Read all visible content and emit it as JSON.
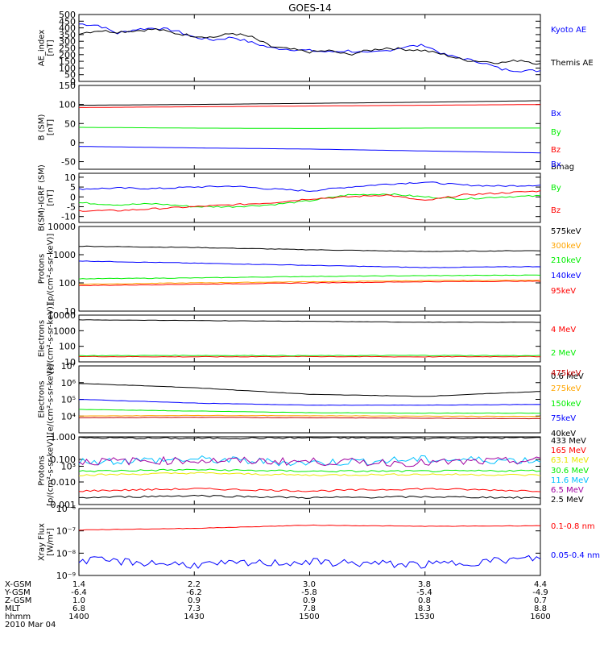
{
  "title": "GOES-14",
  "colors": {
    "black": "#000000",
    "blue": "#0000ff",
    "red": "#ff0000",
    "green": "#00ee00",
    "orange": "#ffa500",
    "yellow": "#e8e800",
    "cyan": "#00c0ff",
    "purple": "#a000a0",
    "darkred": "#c00000"
  },
  "chart_data": [
    {
      "type": "line",
      "ylabel": "AE_index\n[nT]",
      "ylim": [
        0,
        500
      ],
      "yticks": [
        "0",
        "50",
        "100",
        "150",
        "200",
        "250",
        "300",
        "350",
        "400",
        "450",
        "500"
      ],
      "series": [
        {
          "name": "Kyoto AE",
          "color": "blue",
          "x": [
            0,
            5,
            10,
            15,
            20,
            25,
            30,
            35,
            40,
            45,
            50,
            55,
            60,
            65,
            70,
            75,
            80,
            85,
            90,
            95,
            100,
            105,
            110,
            115,
            120
          ],
          "y": [
            430,
            420,
            360,
            390,
            400,
            380,
            330,
            310,
            330,
            290,
            250,
            240,
            230,
            220,
            230,
            210,
            230,
            260,
            270,
            200,
            170,
            140,
            90,
            80,
            80
          ]
        },
        {
          "name": "Themis AE",
          "color": "black",
          "x": [
            0,
            5,
            10,
            15,
            20,
            25,
            30,
            35,
            40,
            45,
            50,
            55,
            60,
            65,
            70,
            75,
            80,
            85,
            90,
            95,
            100,
            105,
            110,
            115,
            120
          ],
          "y": [
            360,
            380,
            370,
            380,
            390,
            360,
            340,
            330,
            360,
            330,
            260,
            240,
            220,
            230,
            200,
            230,
            250,
            240,
            230,
            200,
            160,
            150,
            140,
            160,
            130
          ]
        }
      ]
    },
    {
      "type": "line",
      "ylabel": "B (SM)\n[nT]",
      "ylim": [
        -70,
        150
      ],
      "yticks": [
        "-50",
        "0",
        "50",
        "100",
        "150"
      ],
      "series": [
        {
          "name": "Bx",
          "color": "blue",
          "x": [
            0,
            30,
            60,
            90,
            120
          ],
          "y": [
            -10,
            -14,
            -17,
            -22,
            -27
          ]
        },
        {
          "name": "By",
          "color": "green",
          "x": [
            0,
            30,
            60,
            90,
            120
          ],
          "y": [
            40,
            38,
            37,
            38,
            38
          ]
        },
        {
          "name": "Bz",
          "color": "red",
          "x": [
            0,
            30,
            60,
            90,
            120
          ],
          "y": [
            92,
            94,
            96,
            98,
            100
          ]
        },
        {
          "name": "Bmag",
          "color": "black",
          "x": [
            0,
            30,
            60,
            90,
            120
          ],
          "y": [
            98,
            100,
            103,
            106,
            110
          ]
        }
      ]
    },
    {
      "type": "line",
      "ylabel": "B(SM)-IGRF (SM)\n[nT]",
      "ylim": [
        -13,
        12
      ],
      "yticks": [
        "-10",
        "-5",
        "0",
        "5",
        "10"
      ],
      "series": [
        {
          "name": "Bx",
          "color": "blue",
          "x": [
            0,
            10,
            20,
            30,
            40,
            50,
            60,
            70,
            80,
            90,
            100,
            110,
            120
          ],
          "y": [
            4,
            4.5,
            4.2,
            5,
            5.5,
            4,
            3,
            5,
            6.5,
            7.5,
            6,
            5.5,
            6
          ]
        },
        {
          "name": "By",
          "color": "green",
          "x": [
            0,
            10,
            20,
            30,
            40,
            50,
            60,
            70,
            80,
            90,
            100,
            110,
            120
          ],
          "y": [
            -3,
            -4,
            -3.5,
            -5,
            -5,
            -4,
            -2,
            1,
            1.5,
            0,
            -1,
            0,
            0.5
          ]
        },
        {
          "name": "Bz",
          "color": "red",
          "x": [
            0,
            10,
            20,
            30,
            40,
            50,
            60,
            70,
            80,
            90,
            100,
            110,
            120
          ],
          "y": [
            -7,
            -7,
            -6,
            -5,
            -4,
            -3,
            -1,
            0,
            1,
            -2,
            1,
            2,
            3
          ]
        }
      ]
    },
    {
      "type": "line",
      "log": true,
      "ylabel": "Protons\n[p/(cm²-s-sr-keV)]",
      "ylim": [
        10,
        10000
      ],
      "yticks": [
        "10",
        "100",
        "1000",
        "10000"
      ],
      "series": [
        {
          "name": "575keV",
          "color": "black",
          "x": [
            0,
            30,
            60,
            90,
            120
          ],
          "y": [
            2000,
            1800,
            1500,
            1300,
            1400
          ]
        },
        {
          "name": "300keV",
          "color": "orange",
          "x": [
            0,
            30,
            60,
            90,
            120
          ],
          "y": [
            90,
            100,
            110,
            120,
            125
          ]
        },
        {
          "name": "210keV",
          "color": "green",
          "x": [
            0,
            30,
            60,
            90,
            120
          ],
          "y": [
            140,
            150,
            170,
            180,
            190
          ]
        },
        {
          "name": "140keV",
          "color": "blue",
          "x": [
            0,
            30,
            60,
            90,
            120
          ],
          "y": [
            600,
            500,
            420,
            350,
            380
          ]
        },
        {
          "name": "95keV",
          "color": "red",
          "x": [
            0,
            30,
            60,
            90,
            120
          ],
          "y": [
            80,
            90,
            100,
            110,
            115
          ]
        }
      ]
    },
    {
      "type": "line",
      "log": true,
      "ylabel": "Electrons\n[e/(cm²-s-sr-keV)]",
      "ylim": [
        10,
        10000
      ],
      "yticks": [
        "10",
        "100",
        "1000",
        "10000"
      ],
      "series": [
        {
          "name": "4 MeV",
          "color": "red",
          "x": [
            0,
            30,
            60,
            90,
            120
          ],
          "y": [
            22,
            21,
            22,
            21,
            22
          ]
        },
        {
          "name": "2 MeV",
          "color": "green",
          "x": [
            0,
            30,
            60,
            90,
            120
          ],
          "y": [
            25,
            26,
            25,
            26,
            25
          ]
        },
        {
          "name": "0.6 MeV",
          "color": "black",
          "x": [
            0,
            30,
            60,
            90,
            120
          ],
          "y": [
            5000,
            4500,
            4000,
            3500,
            3500
          ]
        }
      ]
    },
    {
      "type": "line",
      "log": true,
      "ylabel": "Electrons\n[e/(cm²-s-sr-keV)]",
      "ylim": [
        1000,
        10000000
      ],
      "yticks": [
        "10³",
        "10⁴",
        "10⁵",
        "10⁶",
        "10⁷"
      ],
      "series": [
        {
          "name": "475keV",
          "color": "darkred",
          "x": [
            0,
            30,
            60,
            90,
            120
          ],
          "y": [
            8000,
            8500,
            8000,
            7500,
            7000
          ]
        },
        {
          "name": "275keV",
          "color": "orange",
          "x": [
            0,
            30,
            60,
            90,
            120
          ],
          "y": [
            10000,
            11000,
            10500,
            10000,
            9500
          ]
        },
        {
          "name": "150keV",
          "color": "green",
          "x": [
            0,
            30,
            60,
            90,
            120
          ],
          "y": [
            25000,
            20000,
            16000,
            15000,
            15000
          ]
        },
        {
          "name": "75keV",
          "color": "blue",
          "x": [
            0,
            30,
            60,
            90,
            120
          ],
          "y": [
            100000,
            60000,
            45000,
            45000,
            50000
          ]
        },
        {
          "name": "40keV",
          "color": "black",
          "x": [
            0,
            30,
            60,
            90,
            120
          ],
          "y": [
            900000,
            500000,
            200000,
            150000,
            300000
          ]
        }
      ]
    },
    {
      "type": "line",
      "log": true,
      "ylabel": "Protons\n[p/(cm²-s-sr-keV)]",
      "ylim": [
        0.001,
        1
      ],
      "yticks": [
        "0.001",
        "0.010",
        "0.100",
        "1.000"
      ],
      "series": [
        {
          "name": "433 MeV",
          "color": "black",
          "x": [
            0,
            30,
            60,
            90,
            120
          ],
          "y": [
            0.9,
            0.85,
            0.9,
            0.88,
            0.9
          ]
        },
        {
          "name": "165 MeV",
          "color": "red",
          "x": [
            0,
            30,
            60,
            90,
            120
          ],
          "y": [
            0.004,
            0.005,
            0.004,
            0.005,
            0.004
          ]
        },
        {
          "name": "63.1 MeV",
          "color": "yellow",
          "x": [
            0,
            30,
            60,
            90,
            120
          ],
          "y": [
            0.02,
            0.025,
            0.02,
            0.022,
            0.02
          ]
        },
        {
          "name": "30.6 MeV",
          "color": "green",
          "x": [
            0,
            30,
            60,
            90,
            120
          ],
          "y": [
            0.03,
            0.035,
            0.03,
            0.03,
            0.032
          ]
        },
        {
          "name": "11.6 MeV",
          "color": "cyan",
          "x": [
            0,
            30,
            60,
            90,
            120
          ],
          "y": [
            0.08,
            0.1,
            0.07,
            0.1,
            0.09
          ]
        },
        {
          "name": "6.5 MeV",
          "color": "purple",
          "x": [
            0,
            30,
            60,
            90,
            120
          ],
          "y": [
            0.08,
            0.09,
            0.08,
            0.07,
            0.09
          ]
        },
        {
          "name": "2.5 MeV",
          "color": "black",
          "x": [
            0,
            30,
            60,
            90,
            120
          ],
          "y": [
            0.002,
            0.0025,
            0.002,
            0.0022,
            0.002
          ]
        }
      ]
    },
    {
      "type": "line",
      "log": true,
      "ylabel": "Xray Flux\n[W/m²]",
      "ylim": [
        1e-09,
        1e-06
      ],
      "yticks": [
        "10⁻⁹",
        "10⁻⁸",
        "10⁻⁷",
        "10⁻⁶"
      ],
      "series": [
        {
          "name": "0.1-0.8 nm",
          "color": "red",
          "x": [
            0,
            30,
            60,
            90,
            120
          ],
          "y": [
            1.1e-07,
            1.3e-07,
            1.8e-07,
            1.6e-07,
            1.7e-07
          ]
        },
        {
          "name": "0.05-0.4 nm",
          "color": "blue",
          "x": [
            0,
            30,
            60,
            90,
            120
          ],
          "y": [
            5e-09,
            3e-09,
            4e-09,
            3e-09,
            6e-09
          ]
        }
      ]
    }
  ],
  "footer": {
    "rows": [
      {
        "label": "X-GSM",
        "values": [
          "1.4",
          "2.2",
          "3.0",
          "3.8",
          "4.4"
        ]
      },
      {
        "label": "Y-GSM",
        "values": [
          "-6.4",
          "-6.2",
          "-5.8",
          "-5.4",
          "-4.9"
        ]
      },
      {
        "label": "Z-GSM",
        "values": [
          "1.0",
          "0.9",
          "0.9",
          "0.8",
          "0.7"
        ]
      },
      {
        "label": "MLT",
        "values": [
          "6.8",
          "7.3",
          "7.8",
          "8.3",
          "8.8"
        ]
      },
      {
        "label": "hhmm",
        "values": [
          "1400",
          "1430",
          "1500",
          "1530",
          "1600"
        ]
      }
    ],
    "date": "2010 Mar 04"
  }
}
